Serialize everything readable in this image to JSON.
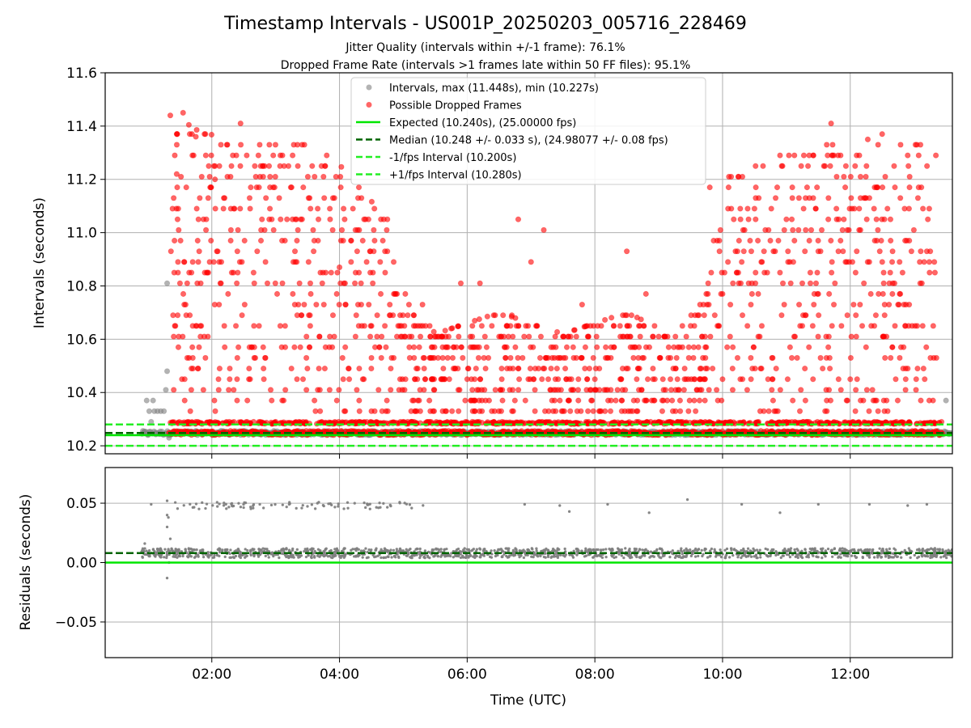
{
  "figure": {
    "title": "Timestamp Intervals - US001P_20250203_005716_228469",
    "subtitle_lines": [
      "Jitter Quality (intervals within +/-1 frame): 76.1%",
      "Dropped Frame Rate (intervals >1 frames late within 50 FF files): 95.1%"
    ]
  },
  "chart_data": [
    {
      "type": "scatter",
      "panel": "intervals",
      "ylabel": "Intervals (seconds)",
      "xlabel": "",
      "x_unit": "hours UTC",
      "xlim": [
        0.33,
        13.6
      ],
      "ylim": [
        10.17,
        11.6
      ],
      "yticks": [
        10.2,
        10.4,
        10.6,
        10.8,
        11.0,
        11.2,
        11.4,
        11.6
      ],
      "ytick_labels": [
        "10.2",
        "10.4",
        "10.6",
        "10.8",
        "11.0",
        "11.2",
        "11.4",
        "11.6"
      ],
      "xticks": [
        2,
        4,
        6,
        8,
        10,
        12
      ],
      "xtick_labels": [
        "02:00",
        "04:00",
        "06:00",
        "08:00",
        "10:00",
        "12:00"
      ],
      "grid": true,
      "legend_position": "top-center",
      "series": [
        {
          "name": "Intervals, max (11.448s), min (10.227s)",
          "kind": "scatter",
          "color": "#808080",
          "points": [
            [
              0.98,
              10.37
            ],
            [
              1.02,
              10.33
            ],
            [
              1.05,
              10.29
            ],
            [
              1.08,
              10.37
            ],
            [
              1.1,
              10.33
            ],
            [
              1.12,
              10.25
            ],
            [
              1.15,
              10.33
            ],
            [
              1.2,
              10.33
            ],
            [
              1.25,
              10.33
            ],
            [
              1.28,
              10.41
            ],
            [
              1.3,
              10.48
            ],
            [
              1.3,
              10.81
            ],
            [
              1.33,
              10.23
            ],
            [
              1.35,
              10.25
            ],
            [
              13.5,
              10.37
            ],
            [
              0.95,
              10.25
            ],
            [
              1.0,
              10.24
            ]
          ],
          "dense_band": {
            "x_from": 0.9,
            "x_to": 13.6,
            "y_from": 10.24,
            "y_to": 10.256
          }
        },
        {
          "name": "Possible Dropped Frames",
          "kind": "scatter",
          "color": "#ff0000",
          "points": [
            [
              1.35,
              11.44
            ],
            [
              1.55,
              11.45
            ],
            [
              1.45,
              11.22
            ],
            [
              1.6,
              11.17
            ],
            [
              1.75,
              11.36
            ],
            [
              1.9,
              11.37
            ],
            [
              2.05,
              11.2
            ],
            [
              2.2,
              11.13
            ],
            [
              2.45,
              11.41
            ],
            [
              2.4,
              10.53
            ],
            [
              2.6,
              11.09
            ],
            [
              2.75,
              11.33
            ],
            [
              2.9,
              11.05
            ],
            [
              3.1,
              10.97
            ],
            [
              3.3,
              10.73
            ],
            [
              3.45,
              11.33
            ],
            [
              3.55,
              10.77
            ],
            [
              3.8,
              11.29
            ],
            [
              4.0,
              10.87
            ],
            [
              4.25,
              11.01
            ],
            [
              4.35,
              10.65
            ],
            [
              4.55,
              10.97
            ],
            [
              4.75,
              11.05
            ],
            [
              4.9,
              10.77
            ],
            [
              5.1,
              10.53
            ],
            [
              5.3,
              10.73
            ],
            [
              5.6,
              10.61
            ],
            [
              5.9,
              10.81
            ],
            [
              6.2,
              10.81
            ],
            [
              6.5,
              10.61
            ],
            [
              6.7,
              10.69
            ],
            [
              6.8,
              11.05
            ],
            [
              7.0,
              10.89
            ],
            [
              7.2,
              11.01
            ],
            [
              7.5,
              10.61
            ],
            [
              7.8,
              10.73
            ],
            [
              8.1,
              10.65
            ],
            [
              8.5,
              10.93
            ],
            [
              8.8,
              10.77
            ],
            [
              9.0,
              10.61
            ],
            [
              9.3,
              10.57
            ],
            [
              9.5,
              10.65
            ],
            [
              9.7,
              10.73
            ],
            [
              9.8,
              11.17
            ],
            [
              9.95,
              10.97
            ],
            [
              10.1,
              11.21
            ],
            [
              10.3,
              10.89
            ],
            [
              10.5,
              11.09
            ],
            [
              10.7,
              10.85
            ],
            [
              10.9,
              11.29
            ],
            [
              11.1,
              11.01
            ],
            [
              11.3,
              11.13
            ],
            [
              11.5,
              10.93
            ],
            [
              11.7,
              11.41
            ],
            [
              11.9,
              11.05
            ],
            [
              12.1,
              11.29
            ],
            [
              12.3,
              11.13
            ],
            [
              12.5,
              11.37
            ],
            [
              12.7,
              11.17
            ],
            [
              12.9,
              11.29
            ],
            [
              13.1,
              11.33
            ],
            [
              13.2,
              10.93
            ],
            [
              13.3,
              10.65
            ],
            [
              13.35,
              10.53
            ],
            [
              4.5,
              10.33
            ],
            [
              6.0,
              10.45
            ],
            [
              8.0,
              10.45
            ],
            [
              10.0,
              10.45
            ],
            [
              12.0,
              10.45
            ],
            [
              7.3,
              10.41
            ],
            [
              3.0,
              10.29
            ],
            [
              5.0,
              10.29
            ],
            [
              9.0,
              10.29
            ],
            [
              11.0,
              10.29
            ]
          ],
          "dense_band": {
            "x_from": 1.33,
            "x_to": 13.45,
            "y_from": 10.24,
            "y_to": 10.256
          }
        },
        {
          "name": "Expected (10.240s), (25.00000 fps)",
          "kind": "hline",
          "y": 10.24,
          "color": "#00e600",
          "style": "solid"
        },
        {
          "name": "Median (10.248 +/- 0.033 s), (24.98077 +/- 0.08 fps)",
          "kind": "hline",
          "y": 10.248,
          "color": "#006400",
          "style": "dashed"
        },
        {
          "name": "-1/fps Interval (10.200s)",
          "kind": "hline",
          "y": 10.2,
          "color": "#22ee22",
          "style": "dashed"
        },
        {
          "name": "+1/fps Interval (10.280s)",
          "kind": "hline",
          "y": 10.28,
          "color": "#22ee22",
          "style": "dashed"
        }
      ]
    },
    {
      "type": "scatter",
      "panel": "residuals",
      "ylabel": "Residuals (seconds)",
      "xlabel": "Time (UTC)",
      "x_unit": "hours UTC",
      "xlim": [
        0.33,
        13.6
      ],
      "ylim": [
        -0.08,
        0.08
      ],
      "yticks": [
        -0.05,
        0.0,
        0.05
      ],
      "ytick_labels": [
        "−0.05",
        "0.00",
        "0.05"
      ],
      "xticks": [
        2,
        4,
        6,
        8,
        10,
        12
      ],
      "xtick_labels": [
        "02:00",
        "04:00",
        "06:00",
        "08:00",
        "10:00",
        "12:00"
      ],
      "grid": true,
      "series": [
        {
          "kind": "scatter",
          "color": "#808080",
          "points": [
            [
              0.95,
              0.016
            ],
            [
              1.3,
              0.04
            ],
            [
              1.3,
              0.03
            ],
            [
              1.32,
              0.038
            ],
            [
              1.3,
              -0.013
            ],
            [
              1.35,
              0.02
            ],
            [
              1.33,
              0.0
            ],
            [
              1.05,
              0.049
            ],
            [
              1.3,
              0.052
            ],
            [
              6.9,
              0.049
            ],
            [
              7.45,
              0.048
            ],
            [
              7.6,
              0.043
            ],
            [
              8.2,
              0.049
            ],
            [
              8.85,
              0.042
            ],
            [
              9.45,
              0.053
            ],
            [
              10.3,
              0.049
            ],
            [
              10.9,
              0.042
            ],
            [
              11.5,
              0.049
            ],
            [
              12.3,
              0.049
            ],
            [
              12.9,
              0.048
            ],
            [
              13.2,
              0.049
            ],
            [
              0.9,
              0.009
            ]
          ],
          "bands": [
            {
              "x_from": 0.9,
              "x_to": 13.6,
              "y_center": 0.008,
              "y_spread": 0.004
            },
            {
              "x_from": 1.35,
              "x_to": 5.35,
              "y_center": 0.048,
              "y_spread": 0.003
            }
          ]
        },
        {
          "kind": "hline",
          "y": 0.0,
          "color": "#00e600",
          "style": "solid"
        },
        {
          "kind": "hline",
          "y": 0.008,
          "color": "#006400",
          "style": "dashed"
        }
      ]
    }
  ]
}
